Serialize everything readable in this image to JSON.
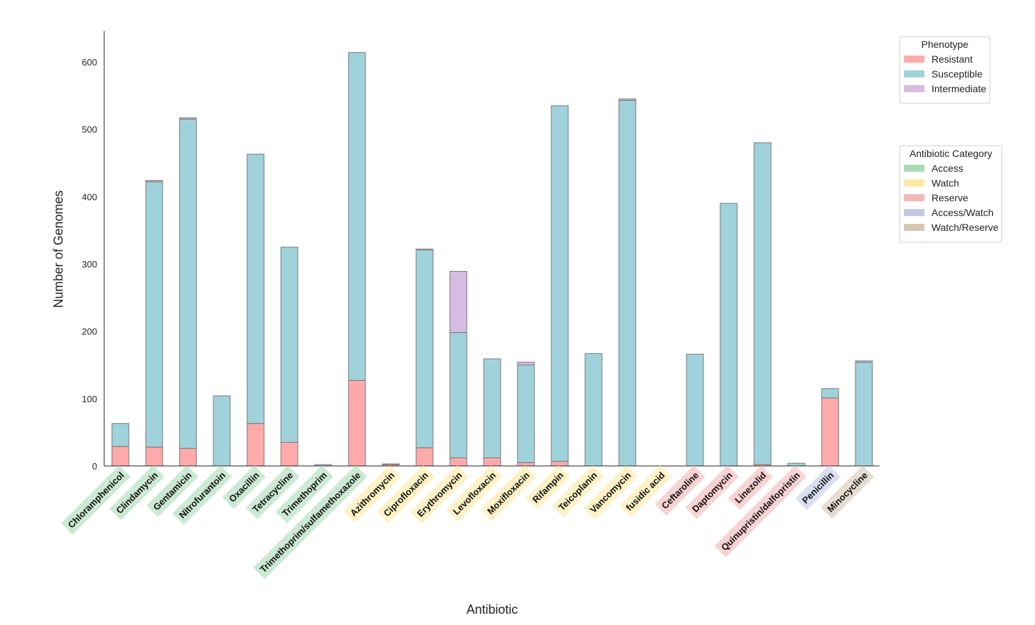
{
  "chart_data": {
    "type": "bar",
    "stacked": true,
    "xlabel": "Antibiotic",
    "ylabel": "Number of Genomes",
    "ylim": [
      0,
      645
    ],
    "yticks": [
      0,
      100,
      200,
      300,
      400,
      500,
      600
    ],
    "grid": false,
    "categories": [
      "Chloramphenicol",
      "Clindamycin",
      "Gentamicin",
      "Nitrofurantoin",
      "Oxacillin",
      "Tetracycline",
      "Trimethoprim",
      "Trimethoprim/sulfamethoxazole",
      "Azithromycin",
      "Ciprofloxacin",
      "Erythromycin",
      "Levofloxacin",
      "Moxifloxacin",
      "Rifampin",
      "Teicoplanin",
      "Vancomycin",
      "fusidic acid",
      "Ceftaroline",
      "Daptomycin",
      "Linezolid",
      "Quinupristin/dalfopristin",
      "Penicillin",
      "Minocycline"
    ],
    "category_class": [
      "Access",
      "Access",
      "Access",
      "Access",
      "Access",
      "Access",
      "Access",
      "Access",
      "Watch",
      "Watch",
      "Watch",
      "Watch",
      "Watch",
      "Watch",
      "Watch",
      "Watch",
      "Watch",
      "Reserve",
      "Reserve",
      "Reserve",
      "Reserve",
      "Access/Watch",
      "Watch/Reserve"
    ],
    "series": [
      {
        "name": "Resistant",
        "color": "#ffaaaa",
        "values": [
          29,
          28,
          26,
          0,
          63,
          35,
          0,
          127,
          2,
          27,
          12,
          12,
          5,
          7,
          0,
          0,
          0,
          0,
          0,
          2,
          0,
          101,
          0
        ]
      },
      {
        "name": "Susceptible",
        "color": "#a0d2db",
        "values": [
          34,
          394,
          489,
          104,
          400,
          290,
          2,
          487,
          1,
          294,
          186,
          147,
          145,
          528,
          167,
          543,
          0,
          166,
          390,
          478,
          4,
          14,
          154
        ]
      },
      {
        "name": "Intermediate",
        "color": "#d6bce3",
        "values": [
          0,
          2,
          2,
          0,
          0,
          0,
          0,
          0,
          0,
          1,
          91,
          0,
          4,
          0,
          0,
          2,
          0,
          0,
          0,
          0,
          0,
          0,
          2
        ]
      }
    ],
    "legends": [
      {
        "title": "Phenotype",
        "placement": "top-right",
        "entries": [
          {
            "label": "Resistant",
            "color": "#ffaaaa"
          },
          {
            "label": "Susceptible",
            "color": "#a0d2db"
          },
          {
            "label": "Intermediate",
            "color": "#d6bce3"
          }
        ]
      },
      {
        "title": "Antibiotic Category",
        "placement": "right",
        "entries": [
          {
            "label": "Access",
            "color": "#a8dab5"
          },
          {
            "label": "Watch",
            "color": "#fde9a0"
          },
          {
            "label": "Reserve",
            "color": "#f4b6b6"
          },
          {
            "label": "Access/Watch",
            "color": "#c0c8e6"
          },
          {
            "label": "Watch/Reserve",
            "color": "#d6c6b0"
          }
        ]
      }
    ]
  }
}
